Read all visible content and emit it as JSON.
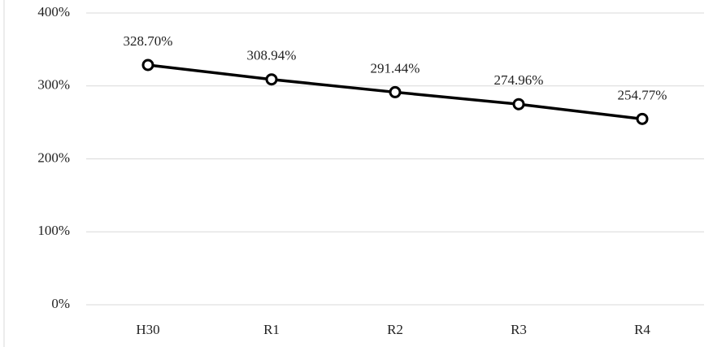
{
  "chart_data": {
    "type": "line",
    "categories": [
      "H30",
      "R1",
      "R2",
      "R3",
      "R4"
    ],
    "values": [
      328.7,
      308.94,
      291.44,
      274.96,
      254.77
    ],
    "value_labels": [
      "328.70%",
      "308.94%",
      "291.44%",
      "274.96%",
      "254.77%"
    ],
    "color": "#000000",
    "ylim": [
      0,
      400
    ],
    "yticks": [
      {
        "value": 0,
        "label": "0%"
      },
      {
        "value": 100,
        "label": "100%"
      },
      {
        "value": 200,
        "label": "200%"
      },
      {
        "value": 300,
        "label": "300%"
      },
      {
        "value": 400,
        "label": "400%"
      }
    ],
    "grid": true
  }
}
